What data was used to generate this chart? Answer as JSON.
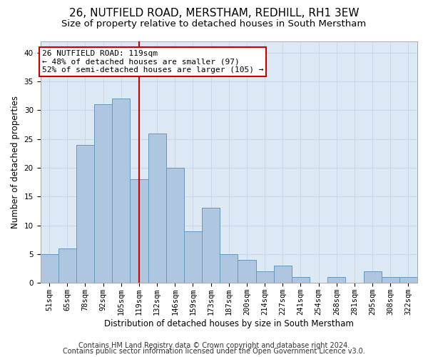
{
  "title1": "26, NUTFIELD ROAD, MERSTHAM, REDHILL, RH1 3EW",
  "title2": "Size of property relative to detached houses in South Merstham",
  "xlabel": "Distribution of detached houses by size in South Merstham",
  "ylabel": "Number of detached properties",
  "categories": [
    "51sqm",
    "65sqm",
    "78sqm",
    "92sqm",
    "105sqm",
    "119sqm",
    "132sqm",
    "146sqm",
    "159sqm",
    "173sqm",
    "187sqm",
    "200sqm",
    "214sqm",
    "227sqm",
    "241sqm",
    "254sqm",
    "268sqm",
    "281sqm",
    "295sqm",
    "308sqm",
    "322sqm"
  ],
  "values": [
    5,
    6,
    24,
    31,
    32,
    18,
    26,
    20,
    9,
    13,
    5,
    4,
    2,
    3,
    1,
    0,
    1,
    0,
    2,
    1,
    1
  ],
  "bar_color": "#aec6e0",
  "bar_edge_color": "#6699bb",
  "vline_x": 5,
  "vline_color": "#cc0000",
  "annotation_line1": "26 NUTFIELD ROAD: 119sqm",
  "annotation_line2": "← 48% of detached houses are smaller (97)",
  "annotation_line3": "52% of semi-detached houses are larger (105) →",
  "annotation_box_color": "#ffffff",
  "annotation_box_edge_color": "#cc0000",
  "ylim": [
    0,
    42
  ],
  "yticks": [
    0,
    5,
    10,
    15,
    20,
    25,
    30,
    35,
    40
  ],
  "grid_color": "#c8d4e8",
  "background_color": "#dce8f4",
  "footer1": "Contains HM Land Registry data © Crown copyright and database right 2024.",
  "footer2": "Contains public sector information licensed under the Open Government Licence v3.0.",
  "title_fontsize": 11,
  "subtitle_fontsize": 9.5,
  "axis_label_fontsize": 8.5,
  "tick_fontsize": 7.5,
  "annotation_fontsize": 8,
  "footer_fontsize": 7
}
